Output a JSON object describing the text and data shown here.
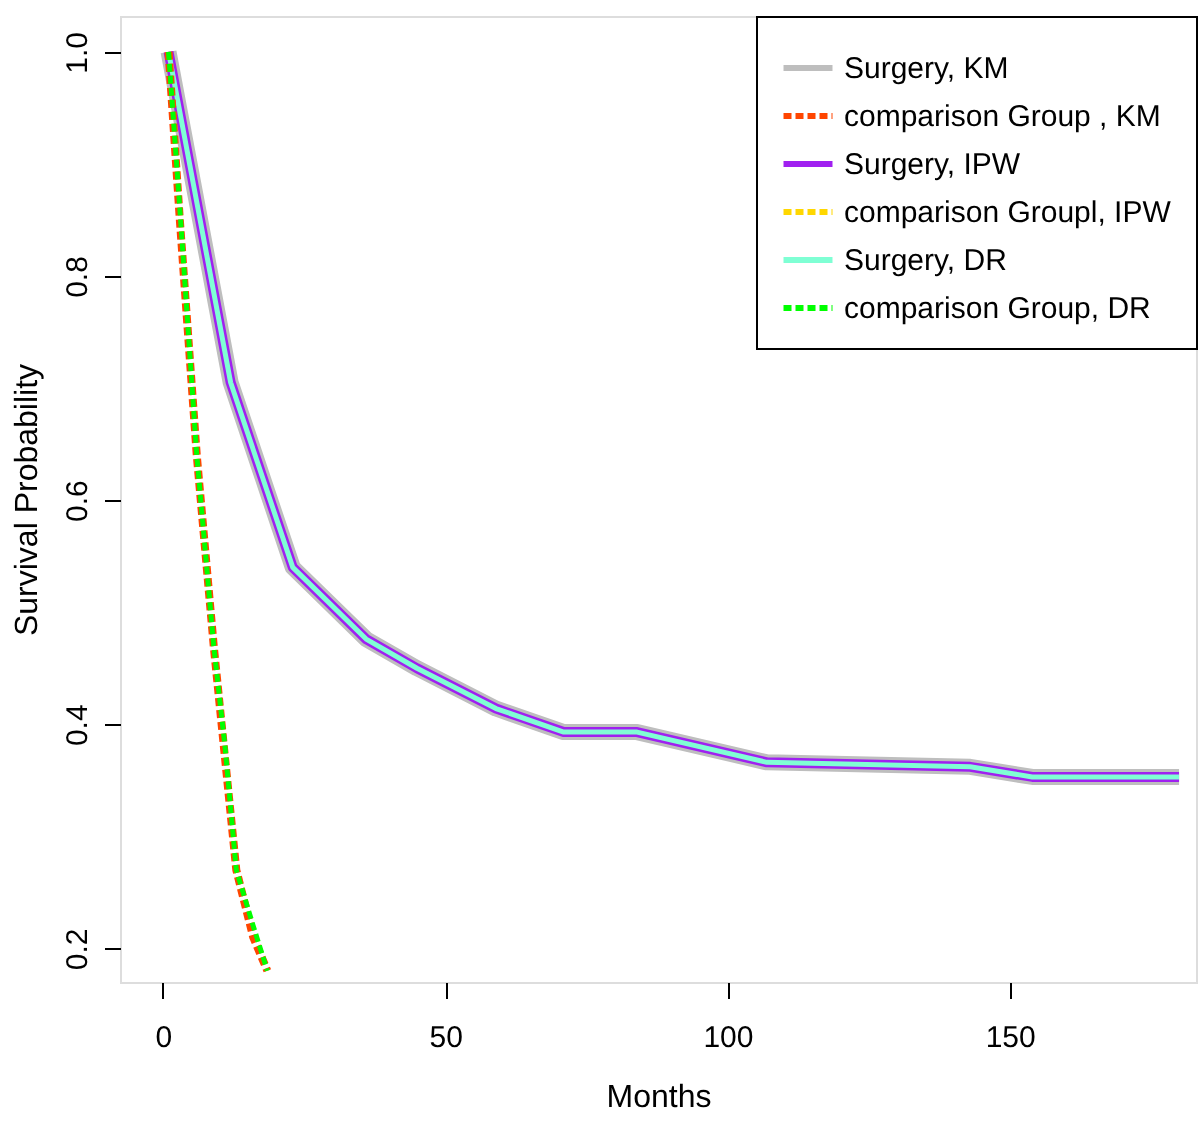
{
  "chart_data": {
    "type": "line",
    "xlabel": "Months",
    "ylabel": "Survival Probability",
    "xlim": [
      -7.6,
      183
    ],
    "ylim": [
      0.17,
      1.032
    ],
    "xticks": [
      0,
      50,
      100,
      150
    ],
    "yticks": [
      {
        "value": 0.2,
        "label": "0.2"
      },
      {
        "value": 0.4,
        "label": "0.4"
      },
      {
        "value": 0.6,
        "label": "0.6"
      },
      {
        "value": 0.8,
        "label": "0.8"
      },
      {
        "value": 1,
        "label": "1.0"
      }
    ],
    "grid": false,
    "legend": "top right",
    "series": [
      {
        "name": "Surgery, KM",
        "color": "#bebebe",
        "line_style": "solid",
        "x": [
          1,
          12,
          23,
          36,
          45,
          59,
          71,
          84,
          107,
          143,
          154,
          180
        ],
        "values": [
          1.0,
          0.705,
          0.54,
          0.476,
          0.45,
          0.414,
          0.393,
          0.393,
          0.366,
          0.362,
          0.353,
          0.353
        ]
      },
      {
        "name": "comparison Group , KM",
        "color": "#ff4500",
        "line_style": "dashed",
        "x": [
          1,
          3,
          6,
          9,
          11,
          13,
          16,
          18.5
        ],
        "values": [
          1.0,
          0.85,
          0.64,
          0.47,
          0.37,
          0.27,
          0.21,
          0.18
        ]
      },
      {
        "name": "Surgery, IPW",
        "color": "#a020f0",
        "line_style": "solid",
        "x": [
          1,
          12,
          23,
          36,
          45,
          59,
          71,
          84,
          107,
          143,
          154,
          180
        ],
        "values": [
          1.0,
          0.705,
          0.54,
          0.476,
          0.45,
          0.414,
          0.393,
          0.393,
          0.366,
          0.362,
          0.353,
          0.353
        ]
      },
      {
        "name": "comparison Groupl, IPW",
        "color": "#ffd700",
        "line_style": "dashed"
      },
      {
        "name": "Surgery, DR",
        "color": "#7fffd4",
        "line_style": "solid",
        "x": [
          1,
          12,
          23,
          36,
          45,
          59,
          71,
          84,
          107,
          143,
          154,
          180
        ],
        "values": [
          1.0,
          0.705,
          0.54,
          0.476,
          0.45,
          0.414,
          0.393,
          0.393,
          0.366,
          0.362,
          0.353,
          0.353
        ]
      },
      {
        "name": "comparison Group, DR",
        "color": "#00ff00",
        "line_style": "dashed",
        "x": [
          1,
          3,
          6,
          9,
          11,
          13,
          16,
          18.5
        ],
        "values": [
          1.0,
          0.86,
          0.64,
          0.47,
          0.38,
          0.27,
          0.22,
          0.18
        ]
      }
    ]
  }
}
